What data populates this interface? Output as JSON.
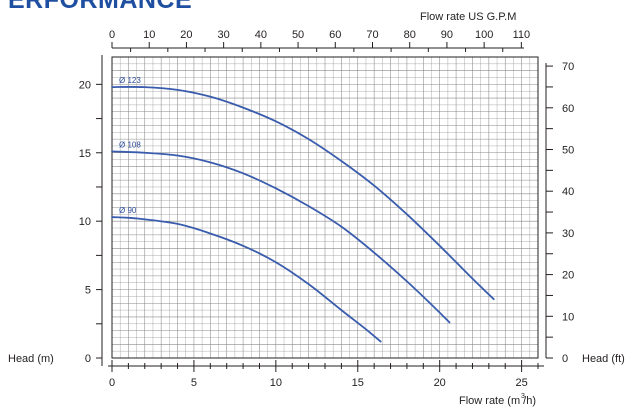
{
  "header": {
    "title": "ERFORMANCE"
  },
  "colors": {
    "curve": "#3a5cad",
    "grid": "#8a8a8a",
    "axis": "#231f20",
    "heading": "#1f4fa0"
  },
  "chart_data": {
    "type": "line",
    "x_label": "Flow rate  (m /h)",
    "x_label_superscript": "3",
    "y_label": "Head (m)",
    "y2_label": "Head (ft)",
    "x2_label": "Flow rate US  G.P.M",
    "xlim": [
      0,
      26
    ],
    "ylim": [
      0,
      22
    ],
    "x_ticks": [
      0,
      5,
      10,
      15,
      20,
      25
    ],
    "y_ticks": [
      0,
      5,
      10,
      15,
      20
    ],
    "x2_ticks": [
      0,
      10,
      20,
      30,
      40,
      50,
      60,
      70,
      80,
      90,
      100,
      110
    ],
    "y2_ticks": [
      0,
      10,
      20,
      30,
      40,
      50,
      60,
      70
    ],
    "series": [
      {
        "name": "Ø 123",
        "x": [
          0,
          2,
          4,
          6,
          8,
          10,
          12,
          14,
          16,
          18,
          20,
          22,
          23.3
        ],
        "y": [
          19.8,
          19.8,
          19.6,
          19.1,
          18.3,
          17.3,
          16.0,
          14.4,
          12.6,
          10.5,
          8.2,
          5.8,
          4.3
        ]
      },
      {
        "name": "Ø 108",
        "x": [
          0,
          2,
          4,
          6,
          8,
          10,
          12,
          14,
          16,
          18,
          19.5,
          20.6
        ],
        "y": [
          15.1,
          15.0,
          14.8,
          14.3,
          13.5,
          12.4,
          11.1,
          9.6,
          7.7,
          5.6,
          3.9,
          2.6
        ]
      },
      {
        "name": "Ø 90",
        "x": [
          0,
          1.5,
          4,
          6,
          8,
          10,
          12,
          14,
          15.5,
          16.4
        ],
        "y": [
          10.3,
          10.2,
          9.8,
          9.1,
          8.2,
          7.0,
          5.4,
          3.5,
          2.1,
          1.2
        ]
      }
    ]
  }
}
